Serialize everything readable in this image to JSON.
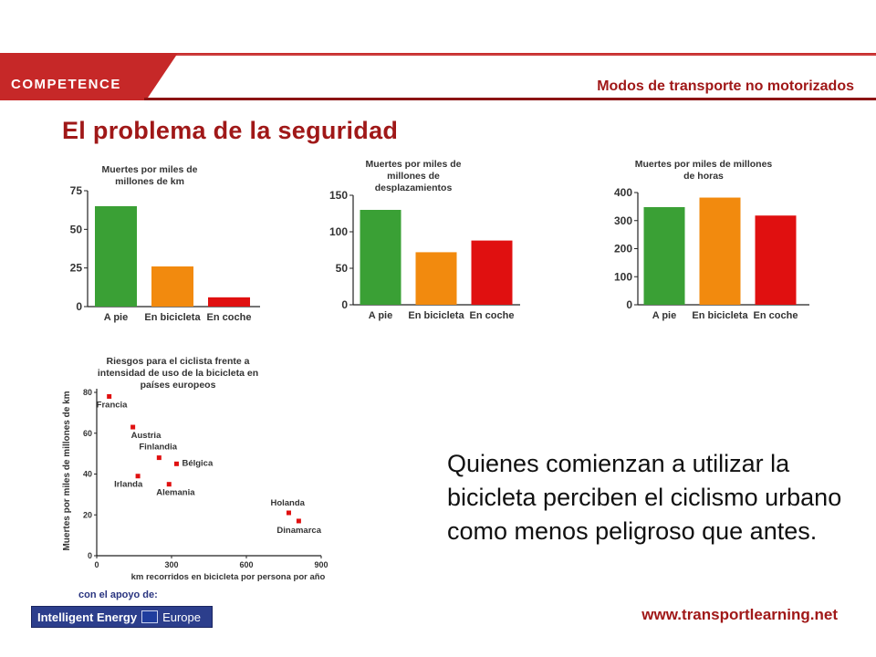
{
  "header": {
    "logo_text": "COMPETENCE",
    "subtitle": "Modos de transporte no motorizados",
    "colors": {
      "bar": "#8c1414",
      "accent": "#c62828"
    }
  },
  "page_title": "El problema de la seguridad",
  "body_text": "Quienes comienzan a utilizar la bicicleta perciben el ciclismo urbano como menos peligroso que antes.",
  "footer": {
    "support_label": "con el apoyo de:",
    "logo_text_1": "Intelligent Energy",
    "logo_text_2": "Europe",
    "url": "www.transportlearning.net"
  },
  "chart_data": [
    {
      "type": "bar",
      "title": "Muertes por miles de millones de km",
      "categories": [
        "A pie",
        "En bicicleta",
        "En coche"
      ],
      "values": [
        65,
        26,
        6
      ],
      "colors": [
        "#3aa035",
        "#f28a0e",
        "#e01010"
      ],
      "yticks": [
        "0",
        "25",
        "50",
        "75"
      ],
      "ylim": [
        0,
        75
      ]
    },
    {
      "type": "bar",
      "title": "Muertes por miles de millones de desplazamientos",
      "categories": [
        "A pie",
        "En bicicleta",
        "En coche"
      ],
      "values": [
        130,
        72,
        88
      ],
      "colors": [
        "#3aa035",
        "#f28a0e",
        "#e01010"
      ],
      "yticks": [
        "0",
        "50",
        "100",
        "150"
      ],
      "ylim": [
        0,
        150
      ]
    },
    {
      "type": "bar",
      "title": "Muertes por miles de millones de horas",
      "categories": [
        "A pie",
        "En bicicleta",
        "En coche"
      ],
      "values": [
        348,
        382,
        318
      ],
      "colors": [
        "#3aa035",
        "#f28a0e",
        "#e01010"
      ],
      "yticks": [
        "0",
        "100",
        "200",
        "300",
        "400"
      ],
      "ylim": [
        0,
        400
      ]
    },
    {
      "type": "scatter",
      "title": "Riesgos para el ciclista frente a intensidad de uso de la bicicleta en países europeos",
      "xlabel": "km recorridos en bicicleta por persona por año",
      "ylabel": "Muertes por miles de millones de km",
      "xticks": [
        "0",
        "300",
        "600",
        "900"
      ],
      "yticks": [
        "0",
        "20",
        "40",
        "60",
        "80"
      ],
      "xlim": [
        0,
        900
      ],
      "ylim": [
        0,
        80
      ],
      "color": "#e01010",
      "points": [
        {
          "label": "Francia",
          "x": 50,
          "y": 78
        },
        {
          "label": "Austria",
          "x": 145,
          "y": 63
        },
        {
          "label": "Finlandia",
          "x": 250,
          "y": 48
        },
        {
          "label": "Bélgica",
          "x": 320,
          "y": 45
        },
        {
          "label": "Irlanda",
          "x": 165,
          "y": 39
        },
        {
          "label": "Alemania",
          "x": 290,
          "y": 35
        },
        {
          "label": "Holanda",
          "x": 770,
          "y": 21
        },
        {
          "label": "Dinamarca",
          "x": 810,
          "y": 17
        }
      ]
    }
  ]
}
